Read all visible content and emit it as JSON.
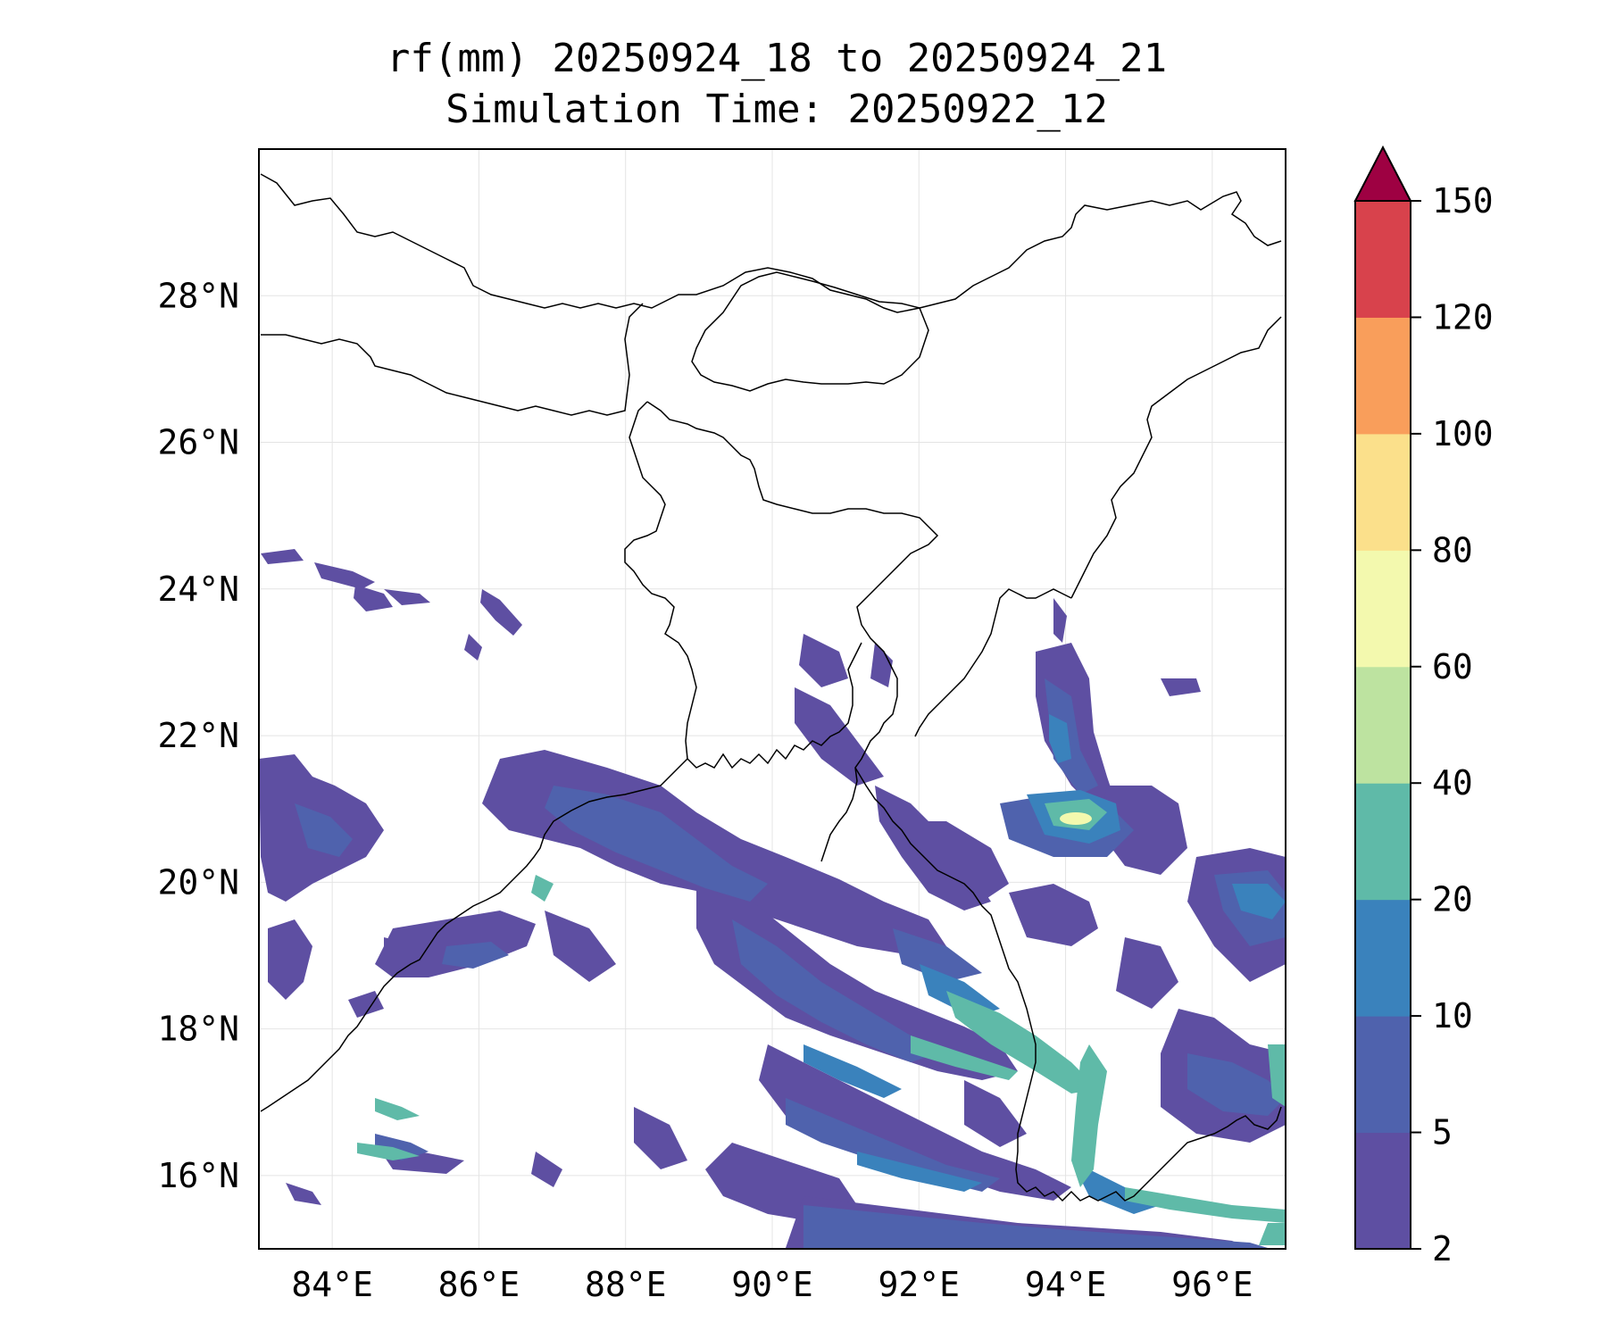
{
  "title": {
    "line1": "rf(mm) 20250924_18 to 20250924_21",
    "line2": "Simulation Time: 20250922_12"
  },
  "map": {
    "lat_labels": [
      "28°N",
      "26°N",
      "24°N",
      "22°N",
      "20°N",
      "18°N",
      "16°N"
    ],
    "lat_values": [
      28,
      26,
      24,
      22,
      20,
      18,
      16
    ],
    "lon_labels": [
      "84°E",
      "86°E",
      "88°E",
      "90°E",
      "92°E",
      "94°E",
      "96°E"
    ],
    "lon_values": [
      84,
      86,
      88,
      90,
      92,
      94,
      96
    ],
    "extent": {
      "lon_min": 83.0,
      "lon_max": 97.0,
      "lat_min": 15.0,
      "lat_max": 30.0
    },
    "gridlines": true
  },
  "colorbar": {
    "levels": [
      "2",
      "5",
      "10",
      "20",
      "40",
      "60",
      "80",
      "100",
      "120",
      "150"
    ],
    "colors": [
      "#5e4fa2",
      "#4f62ad",
      "#3a82bc",
      "#5fbaa8",
      "#bde3a0",
      "#f3f9ae",
      "#fbe08b",
      "#f99e5b",
      "#d8424c",
      "#9e0142"
    ],
    "extend": "max"
  }
}
